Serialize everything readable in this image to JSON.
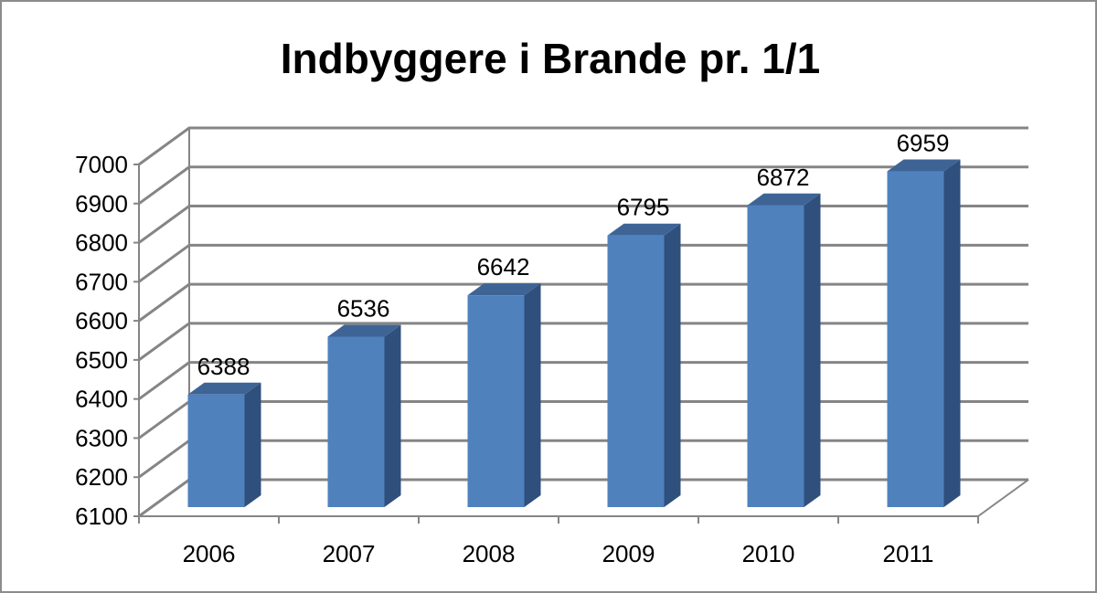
{
  "chart_data": {
    "type": "bar",
    "title": "Indbyggere i Brande pr. 1/1",
    "xlabel": "",
    "ylabel": "",
    "categories": [
      "2006",
      "2007",
      "2008",
      "2009",
      "2010",
      "2011"
    ],
    "values": [
      6388,
      6536,
      6642,
      6795,
      6872,
      6959
    ],
    "data_labels": [
      "6388",
      "6536",
      "6642",
      "6795",
      "6872",
      "6959"
    ],
    "ylim": [
      6100,
      7000
    ],
    "yticks": [
      6100,
      6200,
      6300,
      6400,
      6500,
      6600,
      6700,
      6800,
      6900,
      7000
    ],
    "grid": true,
    "legend": "none",
    "style": "3d-column",
    "colors": {
      "bar_front": "#4f81bd",
      "bar_top": "#3e6496",
      "bar_side": "#2f4f7c",
      "grid": "#858585"
    }
  }
}
